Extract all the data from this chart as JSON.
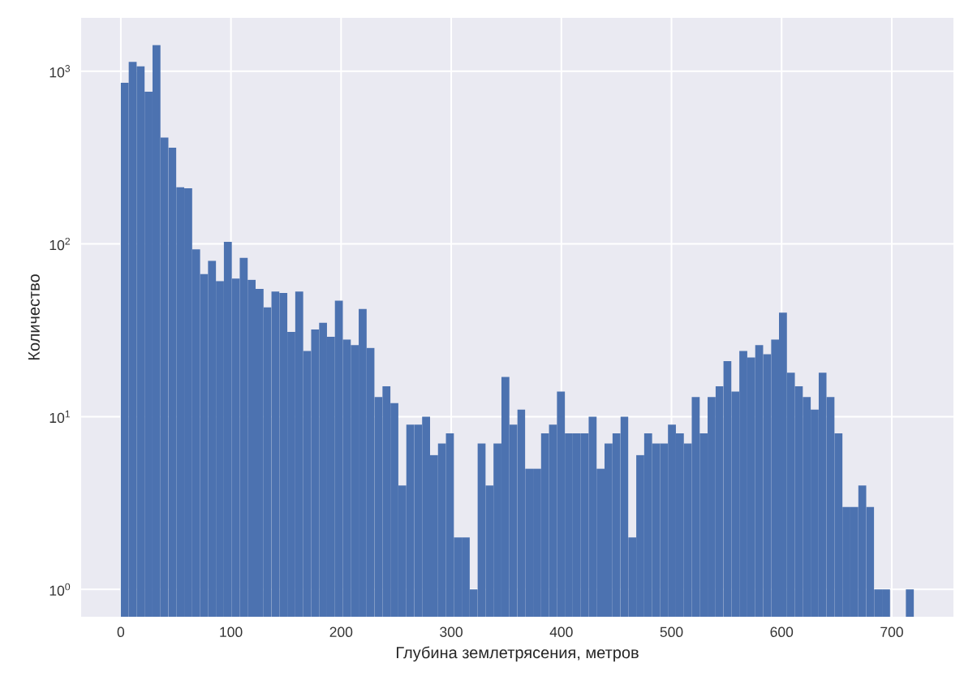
{
  "chart_data": {
    "type": "histogram",
    "xlabel": "Глубина землетрясения, метров",
    "ylabel": "Количество",
    "bins": [
      0,
      7.2,
      14.4,
      21.6,
      28.8,
      36,
      43.2,
      50.4,
      57.6,
      64.8,
      72,
      79.2,
      86.4,
      93.6,
      100.8,
      108,
      115.2,
      122.4,
      129.6,
      136.8,
      144,
      151.2,
      158.4,
      165.6,
      172.8,
      180,
      187.2,
      194.4,
      201.6,
      208.8,
      216,
      223.2,
      230.4,
      237.6,
      244.8,
      252,
      259.2,
      266.4,
      273.6,
      280.8,
      288,
      295.2,
      302.4,
      309.6,
      316.8,
      324,
      331.2,
      338.4,
      345.6,
      352.8,
      360,
      367.2,
      374.4,
      381.6,
      388.8,
      396,
      403.2,
      410.4,
      417.6,
      424.8,
      432,
      439.2,
      446.4,
      453.6,
      460.8,
      468,
      475.2,
      482.4,
      489.6,
      496.8,
      504,
      511.2,
      518.4,
      525.6,
      532.8,
      540,
      547.2,
      554.4,
      561.6,
      568.8,
      576,
      583.2,
      590.4,
      597.6,
      604.8,
      612,
      619.2,
      626.4,
      633.6,
      640.8,
      648,
      655.2,
      662.4,
      669.6,
      676.8,
      684,
      691.2,
      698.4,
      705.6,
      712.8,
      720
    ],
    "values": [
      858,
      1132,
      1067,
      760,
      1416,
      413,
      361,
      213,
      210,
      93,
      67,
      80,
      61,
      103,
      63,
      83,
      62,
      55,
      43,
      53,
      52,
      31,
      53,
      24,
      32,
      35,
      29,
      47,
      28,
      26,
      42,
      25,
      13,
      15,
      12,
      4,
      9,
      9,
      10,
      6,
      7,
      8,
      2,
      2,
      1,
      7,
      4,
      7,
      17,
      9,
      11,
      5,
      5,
      8,
      9,
      14,
      8,
      8,
      8,
      10,
      5,
      7,
      8,
      10,
      2,
      6,
      8,
      7,
      7,
      9,
      8,
      7,
      13,
      8,
      13,
      15,
      21,
      14,
      24,
      22,
      26,
      23,
      28,
      40,
      18,
      15,
      13,
      11,
      18,
      13,
      8,
      3,
      3,
      4,
      3,
      1,
      1,
      null,
      null,
      1
    ],
    "color": "#4c72b0",
    "xlim": [
      -36,
      756
    ],
    "ylim": [
      0.695,
      2036
    ],
    "xticks": [
      0,
      100,
      200,
      300,
      400,
      500,
      600,
      700
    ],
    "yticks": [
      {
        "value": 1,
        "label": "10$^{0}$"
      },
      {
        "value": 10,
        "label": "10$^{1}$"
      },
      {
        "value": 100,
        "label": "10$^{2}$"
      },
      {
        "value": 1000,
        "label": "10$^{3}$"
      }
    ],
    "log": true,
    "grid": true
  }
}
